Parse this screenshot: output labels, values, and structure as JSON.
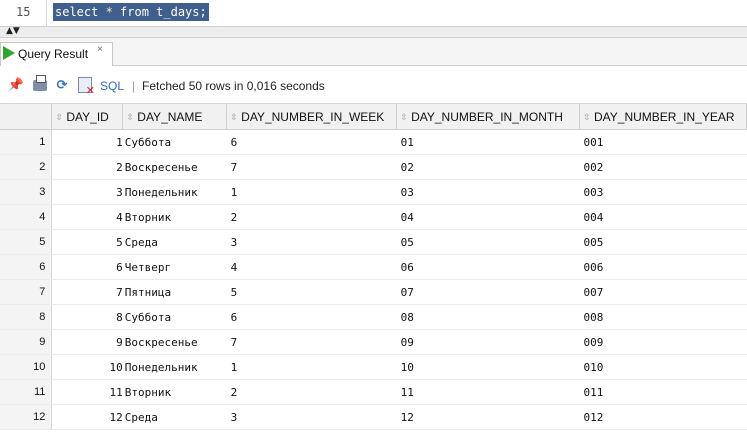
{
  "editor": {
    "line_number": "15",
    "sql_prefix": "select ",
    "sql_star": "*",
    "sql_suffix": " from t_days;"
  },
  "tab": {
    "label": "Query Result",
    "close": "×"
  },
  "toolbar": {
    "sql_label": "SQL",
    "separator": "|",
    "status": "Fetched 50 rows in 0,016 seconds",
    "icons": [
      "pin-icon",
      "print-icon",
      "refresh-icon",
      "cancel-icon"
    ]
  },
  "grid": {
    "columns": [
      "DAY_ID",
      "DAY_NAME",
      "DAY_NUMBER_IN_WEEK",
      "DAY_NUMBER_IN_MONTH",
      "DAY_NUMBER_IN_YEAR"
    ],
    "rows": [
      {
        "n": "1",
        "day_id": "1",
        "day_name": "Суббота",
        "week": "6",
        "month": "01",
        "year": "001"
      },
      {
        "n": "2",
        "day_id": "2",
        "day_name": "Воскресенье",
        "week": "7",
        "month": "02",
        "year": "002"
      },
      {
        "n": "3",
        "day_id": "3",
        "day_name": "Понедельник",
        "week": "1",
        "month": "03",
        "year": "003"
      },
      {
        "n": "4",
        "day_id": "4",
        "day_name": "Вторник",
        "week": "2",
        "month": "04",
        "year": "004"
      },
      {
        "n": "5",
        "day_id": "5",
        "day_name": "Среда",
        "week": "3",
        "month": "05",
        "year": "005"
      },
      {
        "n": "6",
        "day_id": "6",
        "day_name": "Четверг",
        "week": "4",
        "month": "06",
        "year": "006"
      },
      {
        "n": "7",
        "day_id": "7",
        "day_name": "Пятница",
        "week": "5",
        "month": "07",
        "year": "007"
      },
      {
        "n": "8",
        "day_id": "8",
        "day_name": "Суббота",
        "week": "6",
        "month": "08",
        "year": "008"
      },
      {
        "n": "9",
        "day_id": "9",
        "day_name": "Воскресенье",
        "week": "7",
        "month": "09",
        "year": "009"
      },
      {
        "n": "10",
        "day_id": "10",
        "day_name": "Понедельник",
        "week": "1",
        "month": "10",
        "year": "010"
      },
      {
        "n": "11",
        "day_id": "11",
        "day_name": "Вторник",
        "week": "2",
        "month": "11",
        "year": "011"
      },
      {
        "n": "12",
        "day_id": "12",
        "day_name": "Среда",
        "week": "3",
        "month": "12",
        "year": "012"
      }
    ]
  }
}
